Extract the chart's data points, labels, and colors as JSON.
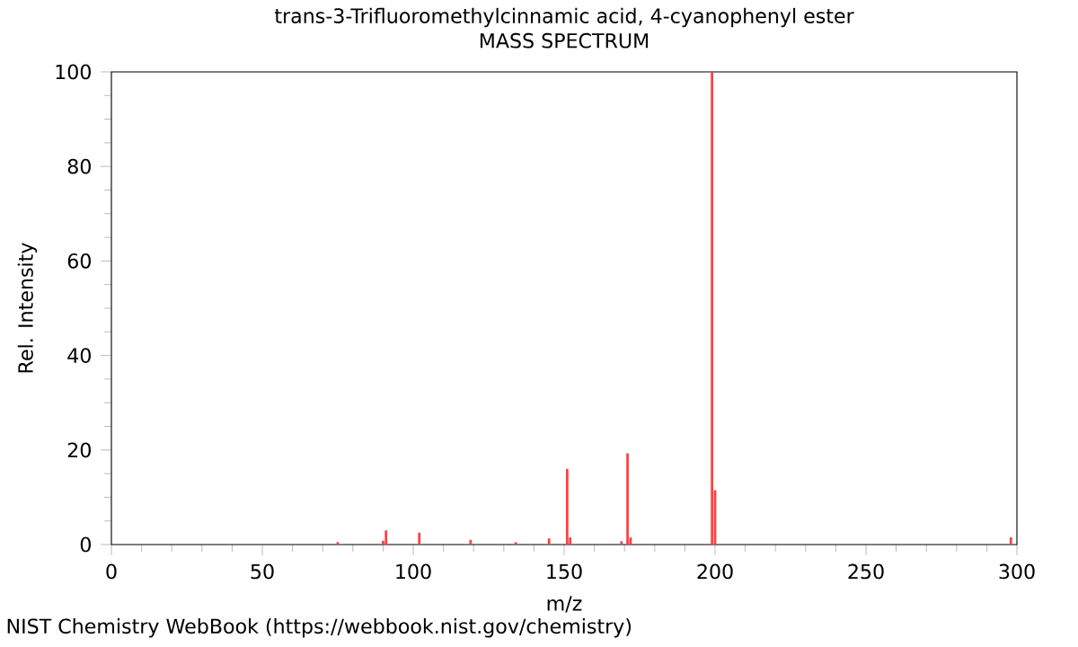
{
  "chart_data": {
    "type": "bar",
    "title": "trans-3-Trifluoromethylcinnamic acid, 4-cyanophenyl ester",
    "subtitle": "MASS SPECTRUM",
    "xlabel": "m/z",
    "ylabel": "Rel. Intensity",
    "x": [
      75,
      90,
      91,
      102,
      119,
      134,
      145,
      151,
      152,
      169,
      171,
      172,
      199,
      200,
      298
    ],
    "values": [
      0.5,
      0.8,
      3,
      2.5,
      1,
      0.5,
      1.3,
      16,
      1.5,
      0.7,
      19.3,
      1.5,
      100,
      11.5,
      1.5
    ],
    "color": "#ff4040",
    "xlim": [
      0,
      300
    ],
    "xticks": [
      0,
      50,
      100,
      150,
      200,
      250,
      300
    ],
    "ylim": [
      0,
      100
    ],
    "yticks": [
      0,
      20,
      40,
      60,
      80,
      100
    ],
    "annotations": [
      "NIST Chemistry WebBook (https://webbook.nist.gov/chemistry)"
    ]
  }
}
